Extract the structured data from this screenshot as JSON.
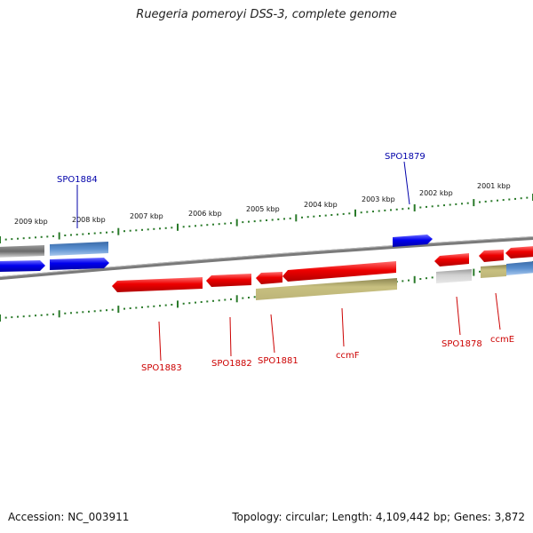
{
  "title": "Ruegeria pomeroyi DSS-3, complete genome",
  "footer": {
    "accession": "Accession: NC_003911",
    "summary": "Topology: circular; Length: 4,109,442 bp; Genes: 3,872"
  },
  "colors": {
    "backbone": "#7a7a7a",
    "tick": "#2a7a2a",
    "forward_cds": "#0000ee",
    "reverse_cds": "#ee0000",
    "label_blue": "#0000aa",
    "label_red": "#cc0000",
    "grey_feature": "#8a8a8a",
    "steelblue_feature": "#4a7fbf",
    "olive_feature": "#b8b070",
    "light_grey_feature": "#c8c8c8"
  },
  "scale_labels": [
    "2009 kbp",
    "2008 kbp",
    "2007 kbp",
    "2006 kbp",
    "2005 kbp",
    "2004 kbp",
    "2003 kbp",
    "2002 kbp",
    "2001 kbp"
  ],
  "genes": [
    {
      "id": "SPO1884",
      "color": "blue"
    },
    {
      "id": "SPO1879",
      "color": "blue"
    },
    {
      "id": "SPO1883",
      "color": "red"
    },
    {
      "id": "SPO1882",
      "color": "red"
    },
    {
      "id": "SPO1881",
      "color": "red"
    },
    {
      "id": "ccmF",
      "color": "red"
    },
    {
      "id": "SPO1878",
      "color": "red"
    },
    {
      "id": "ccmE",
      "color": "red"
    }
  ]
}
